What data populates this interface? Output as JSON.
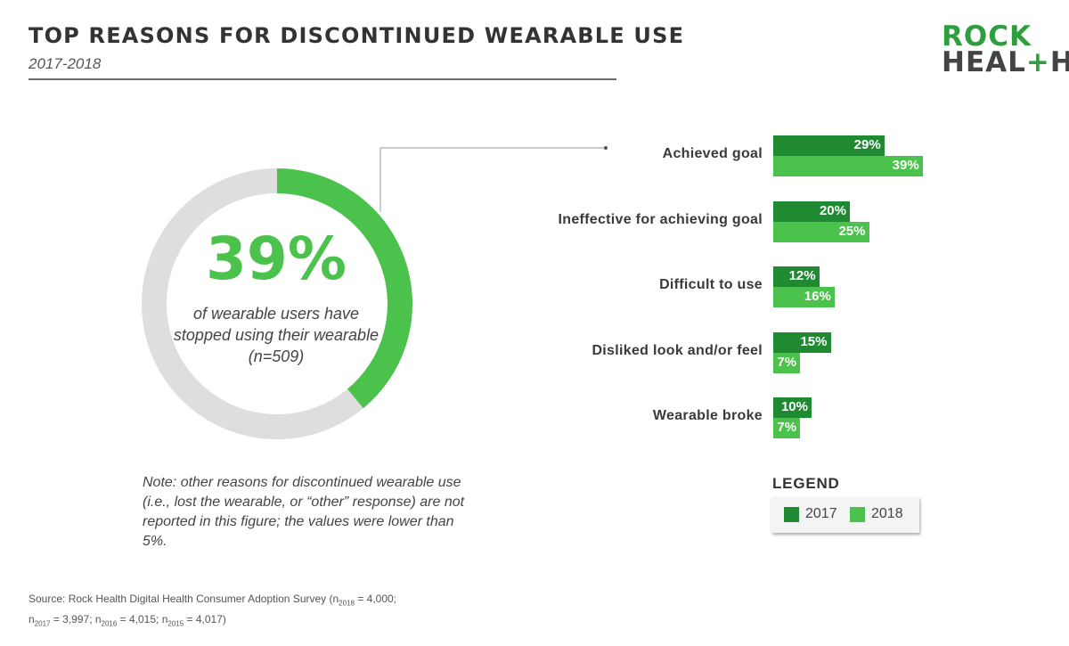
{
  "title": "TOP REASONS FOR DISCONTINUED WEARABLE USE",
  "subtitle": "2017-2018",
  "logo": {
    "line1": "ROCK",
    "line2_a": "HEAL",
    "line2_plus": "+",
    "line2_b": "H"
  },
  "colors": {
    "dark_green": "#1f8a32",
    "light_green": "#4bc24b",
    "donut_track": "#dedede",
    "logo_green": "#2e9e3e"
  },
  "donut": {
    "value_fraction": 0.39,
    "big_label": "39%",
    "caption": "of wearable users have stopped using their wearable (n=509)"
  },
  "chart_data": {
    "type": "bar",
    "orientation": "horizontal",
    "categories": [
      "Achieved goal",
      "Ineffective for achieving goal",
      "Difficult to use",
      "Disliked look and/or feel",
      "Wearable broke"
    ],
    "series": [
      {
        "name": "2017",
        "values": [
          29,
          20,
          12,
          15,
          10
        ],
        "labels": [
          "29%",
          "20%",
          "12%",
          "15%",
          "10%"
        ]
      },
      {
        "name": "2018",
        "values": [
          39,
          25,
          16,
          7,
          7
        ],
        "labels": [
          "39%",
          "25%",
          "16%",
          "7%",
          "7%"
        ]
      }
    ],
    "unit": "%",
    "xlim": [
      0,
      100
    ],
    "grid": false,
    "legend_position": "bottom-right"
  },
  "legend": {
    "title": "LEGEND",
    "items": [
      "2017",
      "2018"
    ]
  },
  "note": "Note: other reasons for discontinued wearable use (i.e., lost the wearable, or “other” response) are not reported in this figure; the values were lower than 5%.",
  "source": {
    "prefix": "Source: Rock Health Digital Health Consumer Adoption Survey (n",
    "sub_2018": "2018",
    "v_2018": " = 4,000;",
    "n_2017_pre": "n",
    "sub_2017": "2017",
    "v_2017": " = 3,997; n",
    "sub_2016": "2016",
    "v_2016": " = 4,015; n",
    "sub_2015": "2015",
    "v_2015": " = 4,017)"
  }
}
